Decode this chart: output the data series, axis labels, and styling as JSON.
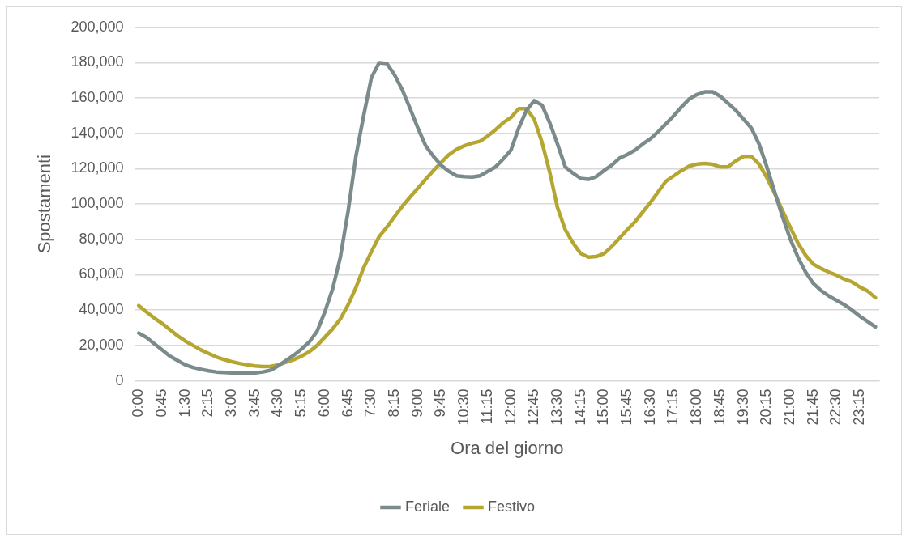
{
  "chart_data": {
    "type": "line",
    "xlabel": "Ora del giorno",
    "ylabel": "Spostamenti",
    "categories": [
      "0:00",
      null,
      null,
      "0:45",
      null,
      null,
      "1:30",
      null,
      null,
      "2:15",
      null,
      null,
      "3:00",
      null,
      null,
      "3:45",
      null,
      null,
      "4:30",
      null,
      null,
      "5:15",
      null,
      null,
      "6:00",
      null,
      null,
      "6:45",
      null,
      null,
      "7:30",
      null,
      null,
      "8:15",
      null,
      null,
      "9:00",
      null,
      null,
      "9:45",
      null,
      null,
      "10:30",
      null,
      null,
      "11:15",
      null,
      null,
      "12:00",
      null,
      null,
      "12:45",
      null,
      null,
      "13:30",
      null,
      null,
      "14:15",
      null,
      null,
      "15:00",
      null,
      null,
      "15:45",
      null,
      null,
      "16:30",
      null,
      null,
      "17:15",
      null,
      null,
      "18:00",
      null,
      null,
      "18:45",
      null,
      null,
      "19:30",
      null,
      null,
      "20:15",
      null,
      null,
      "21:00",
      null,
      null,
      "21:45",
      null,
      null,
      "22:30",
      null,
      null,
      "23:15",
      null,
      null
    ],
    "series": [
      {
        "name": "Feriale",
        "color": "#7b8a8b",
        "values": [
          27000,
          24500,
          21000,
          17500,
          14000,
          11500,
          9000,
          7500,
          6500,
          5600,
          5000,
          4700,
          4500,
          4400,
          4300,
          4500,
          5000,
          6000,
          8500,
          11500,
          14500,
          18000,
          22000,
          28000,
          39000,
          52000,
          70000,
          96000,
          127000,
          150000,
          171500,
          180000,
          179500,
          173000,
          164500,
          154000,
          143000,
          133000,
          127000,
          122000,
          118500,
          116000,
          115500,
          115300,
          116000,
          118500,
          121000,
          125500,
          130500,
          143000,
          153000,
          158500,
          156000,
          146000,
          134000,
          121000,
          117500,
          114500,
          114000,
          115500,
          119000,
          122000,
          126000,
          128000,
          130500,
          134000,
          137000,
          141000,
          145500,
          150000,
          155000,
          159500,
          162000,
          163500,
          163500,
          161000,
          157000,
          153000,
          148000,
          143000,
          134000,
          121000,
          107000,
          93000,
          80500,
          70000,
          61500,
          55000,
          51000,
          48000,
          45500,
          43000,
          40000,
          36500,
          33500,
          30500
        ]
      },
      {
        "name": "Festivo",
        "color": "#b5a632",
        "values": [
          42500,
          39000,
          35500,
          32500,
          29000,
          25500,
          22500,
          20000,
          17500,
          15500,
          13500,
          12000,
          10800,
          9800,
          9000,
          8400,
          8000,
          8200,
          9000,
          10500,
          12000,
          14000,
          16500,
          20000,
          24700,
          29400,
          35000,
          43000,
          52700,
          64000,
          73000,
          81600,
          87000,
          93000,
          98800,
          104000,
          109000,
          114000,
          119000,
          123500,
          128000,
          131000,
          133000,
          134500,
          135500,
          138500,
          142000,
          146000,
          149000,
          154000,
          154000,
          148000,
          135000,
          118000,
          98000,
          85500,
          78000,
          72000,
          70000,
          70300,
          72000,
          76000,
          80700,
          85500,
          90000,
          95500,
          101000,
          107000,
          113000,
          116000,
          119000,
          121500,
          122600,
          123000,
          122500,
          121000,
          121000,
          124500,
          127000,
          127000,
          122600,
          115000,
          106000,
          96500,
          87000,
          78000,
          71000,
          66000,
          63500,
          61500,
          59700,
          57500,
          56000,
          53000,
          50800,
          47000
        ]
      }
    ],
    "ylim": [
      0,
      200000
    ],
    "yticks": [
      0,
      {
        "value": 20000,
        "label": "20,000"
      },
      {
        "value": 40000,
        "label": "40,000"
      },
      {
        "value": 60000,
        "label": "60,000"
      },
      {
        "value": 80000,
        "label": "80,000"
      },
      {
        "value": 100000,
        "label": "100,000"
      },
      {
        "value": 120000,
        "label": "120,000"
      },
      {
        "value": 140000,
        "label": "140,000"
      },
      {
        "value": 160000,
        "label": "160,000"
      },
      {
        "value": 180000,
        "label": "180,000"
      },
      {
        "value": 200000,
        "label": "200,000"
      }
    ],
    "grid": "y",
    "legend": "bottom",
    "marker": "none",
    "line_style": "solid"
  }
}
